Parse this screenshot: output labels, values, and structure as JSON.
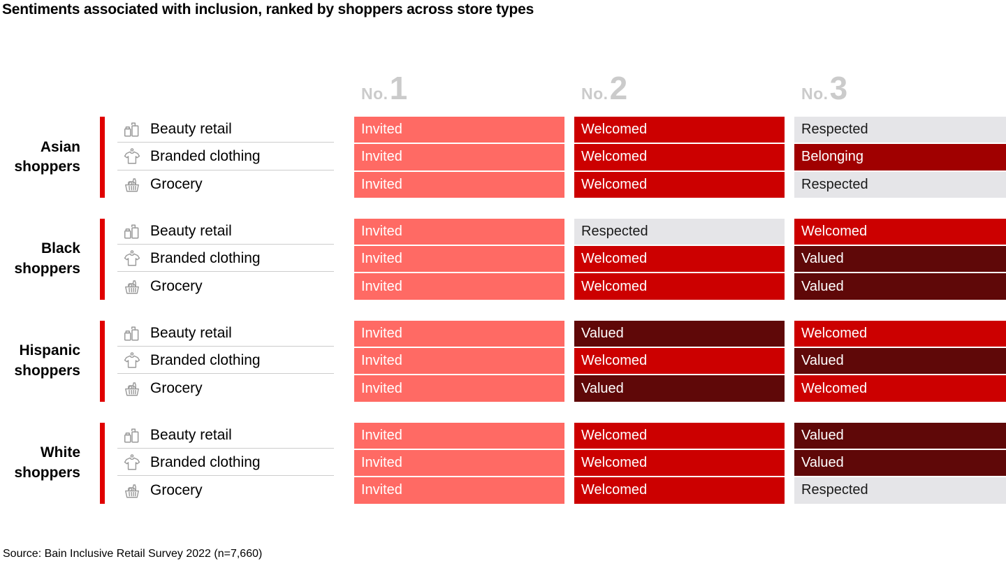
{
  "title": "Sentiments associated with inclusion, ranked by shoppers across store types",
  "source": "Source: Bain Inclusive Retail Survey 2022 (n=7,660)",
  "rank_headers": [
    {
      "prefix": "No.",
      "number": "1"
    },
    {
      "prefix": "No.",
      "number": "2"
    },
    {
      "prefix": "No.",
      "number": "3"
    }
  ],
  "store_types": [
    {
      "name": "Beauty retail",
      "icon": "beauty-retail-icon"
    },
    {
      "name": "Branded clothing",
      "icon": "clothing-icon"
    },
    {
      "name": "Grocery",
      "icon": "grocery-basket-icon"
    }
  ],
  "colors": {
    "accent_bar": "#E00000",
    "rank_header_text": "#CBCBCB",
    "separator": "#CCCCCC",
    "sentiments": {
      "Invited": {
        "bg": "#FF6A64",
        "text": "#FFFFFF"
      },
      "Welcomed": {
        "bg": "#CC0000",
        "text": "#FFFFFF"
      },
      "Respected": {
        "bg": "#E5E5E8",
        "text": "#1A1A1A"
      },
      "Belonging": {
        "bg": "#A00000",
        "text": "#FFFFFF"
      },
      "Valued": {
        "bg": "#5F0808",
        "text": "#FFFFFF"
      }
    }
  },
  "chart_data": {
    "type": "table",
    "title": "Sentiments associated with inclusion, ranked by shoppers across store types",
    "columns": [
      "No.1",
      "No.2",
      "No.3"
    ],
    "groups": [
      {
        "label": "Asian shoppers",
        "rows": [
          {
            "store": "Beauty retail",
            "ranks": [
              "Invited",
              "Welcomed",
              "Respected"
            ]
          },
          {
            "store": "Branded clothing",
            "ranks": [
              "Invited",
              "Welcomed",
              "Belonging"
            ]
          },
          {
            "store": "Grocery",
            "ranks": [
              "Invited",
              "Welcomed",
              "Respected"
            ]
          }
        ]
      },
      {
        "label": "Black shoppers",
        "rows": [
          {
            "store": "Beauty retail",
            "ranks": [
              "Invited",
              "Respected",
              "Welcomed"
            ]
          },
          {
            "store": "Branded clothing",
            "ranks": [
              "Invited",
              "Welcomed",
              "Valued"
            ]
          },
          {
            "store": "Grocery",
            "ranks": [
              "Invited",
              "Welcomed",
              "Valued"
            ]
          }
        ]
      },
      {
        "label": "Hispanic shoppers",
        "rows": [
          {
            "store": "Beauty retail",
            "ranks": [
              "Invited",
              "Valued",
              "Welcomed"
            ]
          },
          {
            "store": "Branded clothing",
            "ranks": [
              "Invited",
              "Welcomed",
              "Valued"
            ]
          },
          {
            "store": "Grocery",
            "ranks": [
              "Invited",
              "Valued",
              "Welcomed"
            ]
          }
        ]
      },
      {
        "label": "White shoppers",
        "rows": [
          {
            "store": "Beauty retail",
            "ranks": [
              "Invited",
              "Welcomed",
              "Valued"
            ]
          },
          {
            "store": "Branded clothing",
            "ranks": [
              "Invited",
              "Welcomed",
              "Valued"
            ]
          },
          {
            "store": "Grocery",
            "ranks": [
              "Invited",
              "Welcomed",
              "Respected"
            ]
          }
        ]
      }
    ]
  }
}
